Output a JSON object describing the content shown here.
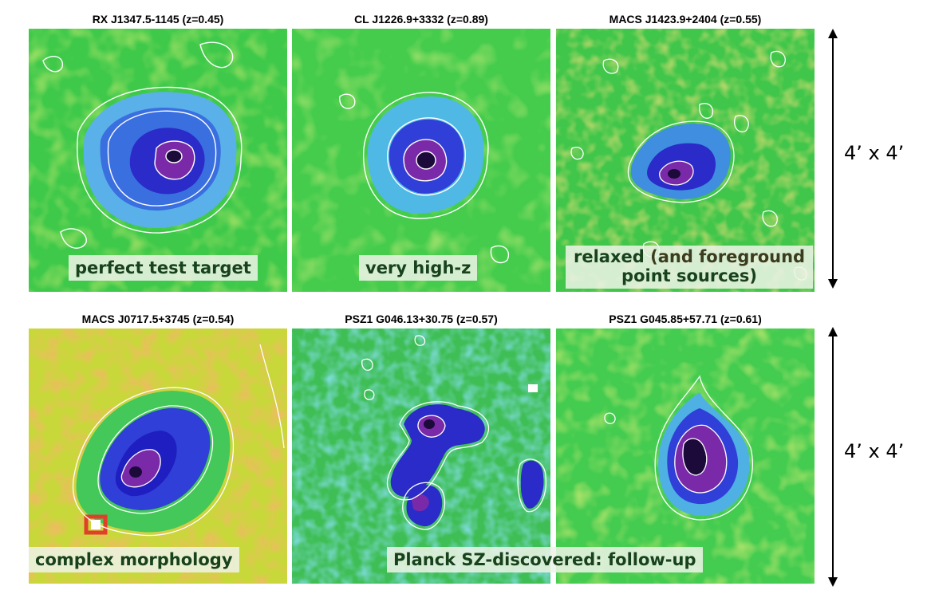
{
  "panels": [
    {
      "title": "RX J1347.5-1145 (z=0.45)",
      "label": "perfect test target"
    },
    {
      "title": "CL J1226.9+3332 (z=0.89)",
      "label": "very high-z"
    },
    {
      "title": "MACS J1423.9+2404 (z=0.55)",
      "label_main": "relaxed",
      "label_paren": "(and foreground",
      "label_line2": "point sources)"
    },
    {
      "title": "MACS J0717.5+3745 (z=0.54)",
      "label": "complex morphology"
    },
    {
      "title": "PSZ1 G046.13+30.75 (z=0.57)"
    },
    {
      "title": "PSZ1 G045.85+57.71 (z=0.61)"
    }
  ],
  "shared_label": "Planck SZ-discovered: follow-up",
  "scale": {
    "top": "4’ x 4’",
    "bottom": "4’ x 4’"
  },
  "colors": {
    "background_green": "#3fc94a",
    "core_dark": "#1b0a3a",
    "core_purple": "#7a2aa8",
    "blue": "#2f3fd8",
    "light_blue": "#4aa0e0",
    "yellow": "#d8df3a",
    "red": "#e0402a",
    "contour": "#ffffff"
  }
}
